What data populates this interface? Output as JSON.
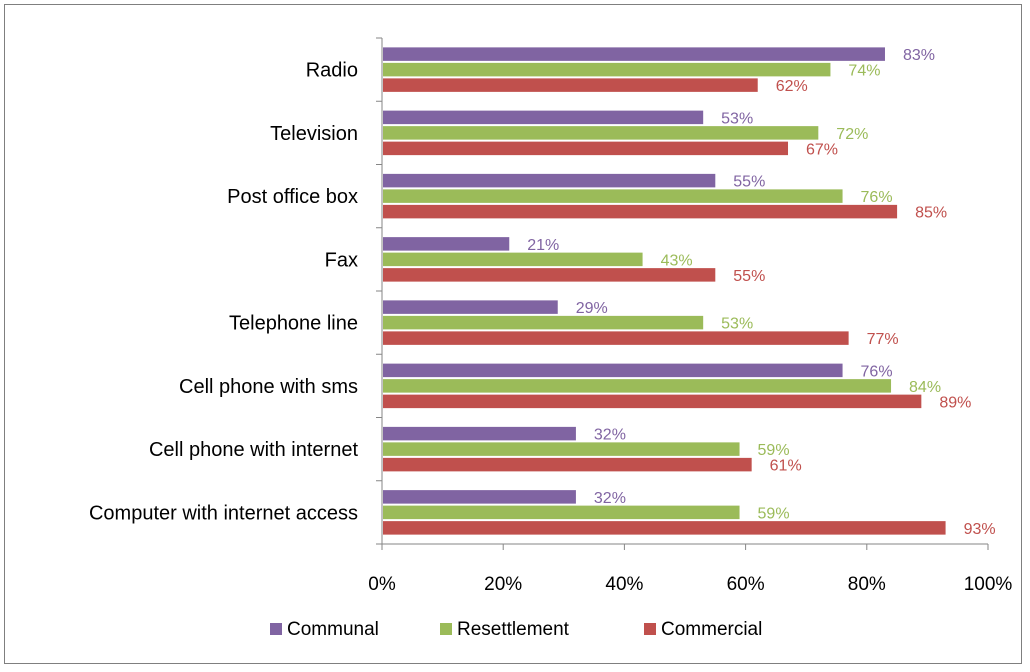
{
  "chart_data": {
    "type": "bar",
    "orientation": "horizontal",
    "categories": [
      "Radio",
      "Television",
      "Post office box",
      "Fax",
      "Telephone line",
      "Cell phone with sms",
      "Cell phone with internet",
      "Computer with internet access"
    ],
    "series": [
      {
        "name": "Communal",
        "color": "#8064A2",
        "values": [
          83,
          53,
          55,
          21,
          29,
          76,
          32,
          32
        ],
        "labels": [
          "83%",
          "53%",
          "55%",
          "21%",
          "29%",
          "76%",
          "32%",
          "32%"
        ]
      },
      {
        "name": "Resettlement",
        "color": "#9BBB59",
        "values": [
          74,
          72,
          76,
          43,
          53,
          84,
          59,
          59
        ],
        "labels": [
          "74%",
          "72%",
          "76%",
          "43%",
          "53%",
          "84%",
          "59%",
          "59%"
        ]
      },
      {
        "name": "Commercial",
        "color": "#C0504D",
        "values": [
          62,
          67,
          85,
          55,
          77,
          89,
          61,
          93
        ],
        "labels": [
          "62%",
          "67%",
          "85%",
          "55%",
          "77%",
          "89%",
          "61%",
          "93%"
        ]
      }
    ],
    "xlim": [
      0,
      100
    ],
    "x_ticks": [
      0,
      20,
      40,
      60,
      80,
      100
    ],
    "x_tick_labels": [
      "0%",
      "20%",
      "40%",
      "60%",
      "80%",
      "100%"
    ],
    "title": "",
    "xlabel": "",
    "ylabel": "",
    "grid": false,
    "legend_position": "bottom"
  }
}
